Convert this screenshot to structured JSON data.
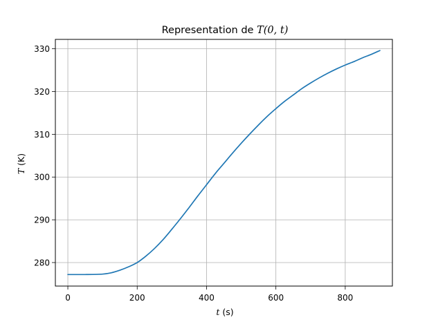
{
  "chart_data": {
    "type": "line",
    "title_prefix": "Representation de ",
    "title_math": "T(0, t)",
    "xlabel_var": "t",
    "xlabel_unit": " (s)",
    "ylabel_var": "T",
    "ylabel_unit": " (K)",
    "xlim": [
      -36,
      936
    ],
    "ylim": [
      274.5,
      332.2
    ],
    "xticks": [
      0,
      200,
      400,
      600,
      800
    ],
    "yticks": [
      280,
      290,
      300,
      310,
      320,
      330
    ],
    "grid": true,
    "series": [
      {
        "color": "#1f77b4",
        "x": [
          0,
          50,
          100,
          125,
          150,
          175,
          200,
          225,
          250,
          275,
          300,
          325,
          350,
          375,
          400,
          425,
          450,
          475,
          500,
          525,
          550,
          575,
          600,
          625,
          650,
          675,
          700,
          725,
          750,
          775,
          800,
          825,
          850,
          875,
          900
        ],
        "y": [
          277.2,
          277.2,
          277.3,
          277.6,
          278.2,
          279.0,
          280.0,
          281.5,
          283.3,
          285.4,
          287.8,
          290.3,
          292.9,
          295.6,
          298.2,
          300.8,
          303.2,
          305.6,
          307.9,
          310.1,
          312.2,
          314.2,
          316.0,
          317.7,
          319.2,
          320.7,
          322.0,
          323.2,
          324.3,
          325.3,
          326.2,
          327.0,
          327.9,
          328.7,
          329.6
        ]
      }
    ]
  }
}
